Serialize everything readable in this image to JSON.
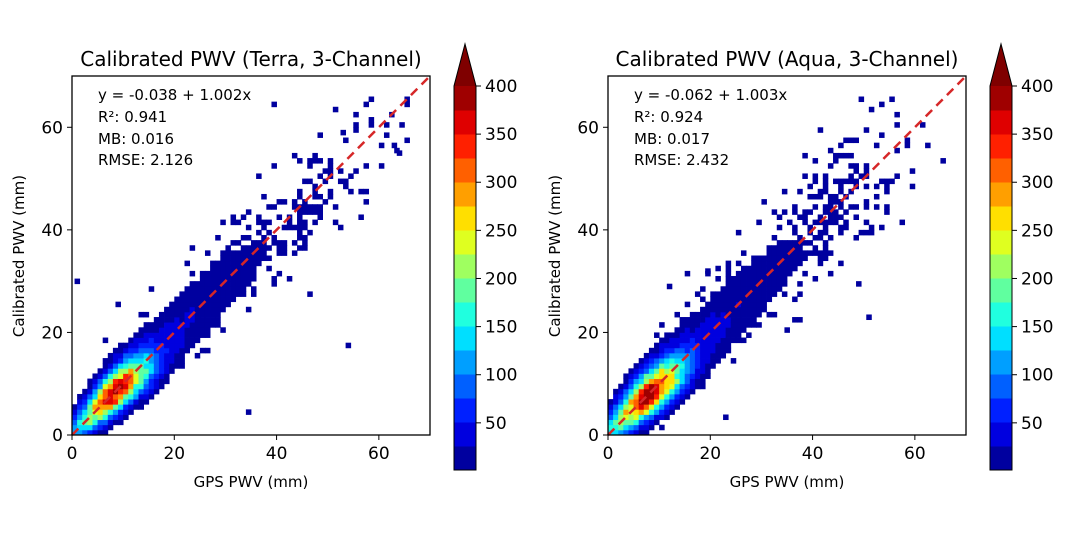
{
  "chart_data": [
    {
      "type": "heatmap",
      "title": "Calibrated PWV (Terra, 3-Channel)",
      "xlabel": "GPS PWV (mm)",
      "ylabel": "Calibrated PWV (mm)",
      "xlim": [
        0,
        70
      ],
      "ylim": [
        0,
        70
      ],
      "xticks": [
        0,
        20,
        40,
        60
      ],
      "yticks": [
        0,
        20,
        40,
        60
      ],
      "fit": {
        "intercept": -0.038,
        "slope": 1.002
      },
      "stats_lines": [
        "y = -0.038 + 1.002x",
        "R²: 0.941",
        "MB: 0.016",
        "RMSE: 2.126"
      ],
      "reference_line": "1:1 (red dashed)",
      "density": {
        "peak_x": 9,
        "peak_y": 8.5,
        "peak_count": 420,
        "spread": 2.1
      },
      "outliers": [
        [
          0.5,
          29.5
        ],
        [
          8.5,
          25
        ],
        [
          34,
          4
        ],
        [
          53.5,
          17
        ],
        [
          63.5,
          54.5
        ],
        [
          62.5,
          56
        ],
        [
          52.5,
          58.5
        ]
      ]
    },
    {
      "type": "heatmap",
      "title": "Calibrated PWV (Aqua, 3-Channel)",
      "xlabel": "GPS PWV (mm)",
      "ylabel": "Calibrated PWV (mm)",
      "xlim": [
        0,
        70
      ],
      "ylim": [
        0,
        70
      ],
      "xticks": [
        0,
        20,
        40,
        60
      ],
      "yticks": [
        0,
        20,
        40,
        60
      ],
      "fit": {
        "intercept": -0.062,
        "slope": 1.003
      },
      "stats_lines": [
        "y = -0.062 + 1.003x",
        "R²: 0.924",
        "MB: 0.017",
        "RMSE: 2.432"
      ],
      "reference_line": "1:1 (red dashed)",
      "density": {
        "peak_x": 8.5,
        "peak_y": 8,
        "peak_count": 430,
        "spread": 2.4
      },
      "outliers": [
        [
          11.5,
          28.5
        ],
        [
          19,
          31.5
        ],
        [
          34.5,
          20
        ],
        [
          50.5,
          22.5
        ],
        [
          36,
          22
        ],
        [
          22.5,
          3
        ],
        [
          48.5,
          29
        ]
      ]
    }
  ],
  "colorbar": {
    "ticks": [
      50,
      100,
      150,
      200,
      250,
      300,
      350,
      400
    ],
    "min": 1,
    "max": 400,
    "levels": 16,
    "extend": "max",
    "cmap": "jet"
  }
}
